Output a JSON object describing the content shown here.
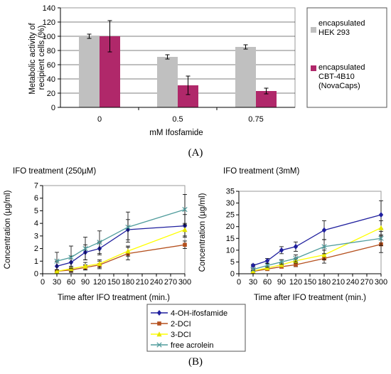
{
  "panels": {
    "a_label": "(A)",
    "b_label": "(B)"
  },
  "chart_data": [
    {
      "type": "bar",
      "title": "",
      "xlabel": "mM Ifosfamide",
      "ylabel": "Metabolic activity of recipient cells (%)",
      "ylabel_lines": [
        "Metabolic activity of",
        "recipient cells (%)"
      ],
      "categories": [
        "0",
        "0.5",
        "0.75"
      ],
      "ylim": [
        0,
        140
      ],
      "yticks": [
        0,
        20,
        40,
        60,
        80,
        100,
        120,
        140
      ],
      "grid": true,
      "legend_position": "right",
      "series": [
        {
          "name": "encapsulated HEK 293",
          "name_lines": [
            "encapsulated",
            "HEK 293"
          ],
          "values": [
            100,
            71,
            85
          ],
          "errors": [
            3,
            3,
            3
          ],
          "color": "#c0c0c0"
        },
        {
          "name": "encapsulated CBT-4B10 (NovaCaps)",
          "name_lines": [
            "encapsulated",
            "CBT-4B10",
            "(NovaCaps)"
          ],
          "values": [
            100,
            31,
            23
          ],
          "errors": [
            22,
            13,
            4
          ],
          "color": "#b0286a"
        }
      ]
    },
    {
      "type": "line",
      "title": "IFO treatment (250µM)",
      "xlabel": "Time after IFO treatment (min.)",
      "ylabel": "Concentration (µg/ml)",
      "x": [
        30,
        60,
        90,
        120,
        180,
        300
      ],
      "xticks": [
        0,
        30,
        60,
        90,
        120,
        150,
        180,
        210,
        240,
        270,
        300
      ],
      "ylim": [
        0,
        7
      ],
      "yticks": [
        0,
        1,
        2,
        3,
        4,
        5,
        6,
        7
      ],
      "series": [
        {
          "name": "4-OH-ifosfamide",
          "values": [
            0.6,
            0.9,
            1.7,
            2.0,
            3.5,
            3.8
          ],
          "errors": [
            0.4,
            0.5,
            0.6,
            0.5,
            0.8,
            0.9
          ]
        },
        {
          "name": "2-DCI",
          "values": [
            0.2,
            0.3,
            0.5,
            0.7,
            1.6,
            2.3
          ],
          "errors": [
            0.1,
            0.2,
            0.2,
            0.3,
            0.5,
            0.3
          ]
        },
        {
          "name": "3-DCI",
          "values": [
            0.2,
            0.4,
            0.6,
            0.8,
            1.8,
            3.5
          ],
          "errors": [
            0.1,
            0.2,
            0.3,
            0.3,
            0.4,
            0.5
          ]
        },
        {
          "name": "free acrolein",
          "values": [
            1.0,
            1.3,
            2.0,
            2.5,
            3.7,
            5.1
          ],
          "errors": [
            0.7,
            0.9,
            0.9,
            0.9,
            1.2,
            1.2
          ]
        }
      ]
    },
    {
      "type": "line",
      "title": "IFO treatment (3mM)",
      "xlabel": "Time after IFO treatment (min.)",
      "ylabel": "Concentration (µg/ml)",
      "x": [
        30,
        60,
        90,
        120,
        180,
        300
      ],
      "xticks": [
        0,
        30,
        60,
        90,
        120,
        150,
        180,
        210,
        240,
        270,
        300
      ],
      "ylim": [
        0,
        35
      ],
      "yticks": [
        0,
        5,
        10,
        15,
        20,
        25,
        30,
        35
      ],
      "series": [
        {
          "name": "4-OH-ifosfamide",
          "values": [
            3.5,
            5.5,
            10,
            11.5,
            18.5,
            25
          ],
          "errors": [
            0.5,
            1,
            1.5,
            2,
            4,
            6
          ]
        },
        {
          "name": "2-DCI",
          "values": [
            1.0,
            2.0,
            3.0,
            3.8,
            6.5,
            12.5
          ],
          "errors": [
            0.3,
            0.5,
            0.6,
            0.8,
            2,
            3.5
          ]
        },
        {
          "name": "3-DCI",
          "values": [
            1.2,
            2.5,
            3.8,
            5.5,
            8,
            19.5
          ],
          "errors": [
            0.3,
            0.6,
            0.8,
            1,
            2,
            3
          ]
        },
        {
          "name": "free acrolein",
          "values": [
            1.8,
            3.5,
            5.0,
            6.5,
            11.5,
            15
          ],
          "errors": [
            0.4,
            0.8,
            1,
            1.5,
            3,
            3
          ]
        }
      ]
    }
  ],
  "legend_b": [
    {
      "name": "4-OH-ifosfamide",
      "color": "#1f1f9e",
      "marker": "diamond"
    },
    {
      "name": "2-DCI",
      "color": "#b5501e",
      "marker": "square"
    },
    {
      "name": "3-DCI",
      "color": "#ffff00",
      "marker": "triangle"
    },
    {
      "name": "free acrolein",
      "color": "#4f9c9c",
      "marker": "x"
    }
  ]
}
